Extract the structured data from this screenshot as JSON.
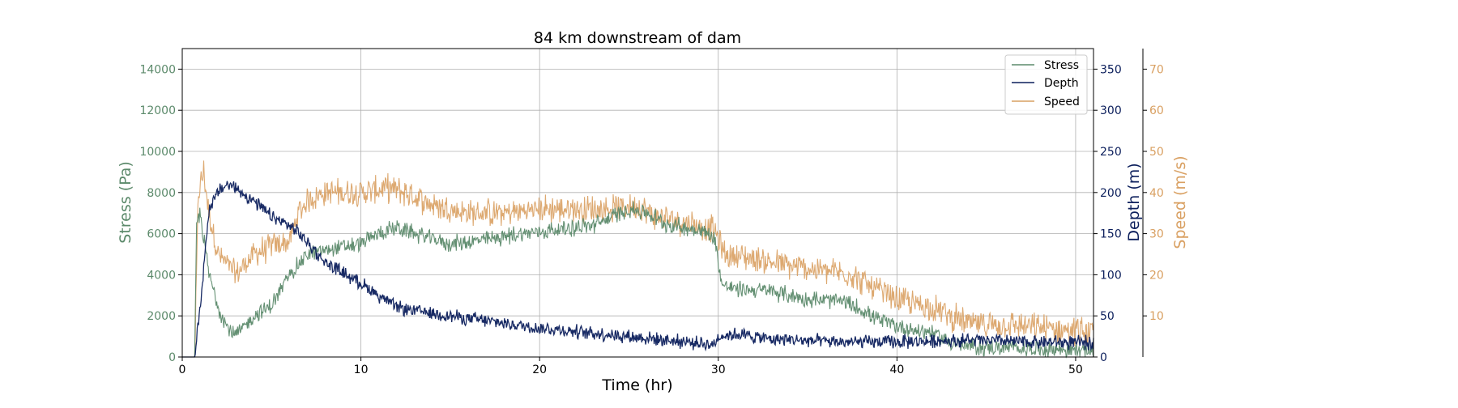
{
  "chart_data": {
    "type": "line",
    "title": "84 km downstream of dam",
    "xlabel": "Time (hr)",
    "xlim": [
      0,
      51
    ],
    "x_ticks": [
      0,
      10,
      20,
      30,
      40,
      50
    ],
    "grid": true,
    "legend_position": "top-right",
    "axes": [
      {
        "id": "stress",
        "label": "Stress (Pa)",
        "side": "left",
        "ylim": [
          0,
          15000
        ],
        "ticks": [
          0,
          2000,
          4000,
          6000,
          8000,
          10000,
          12000,
          14000
        ],
        "color": "#5c8a6b"
      },
      {
        "id": "depth",
        "label": "Depth (m)",
        "side": "right",
        "ylim": [
          0,
          375
        ],
        "ticks": [
          0,
          50,
          100,
          150,
          200,
          250,
          300,
          350
        ],
        "color": "#0c1f5c"
      },
      {
        "id": "speed",
        "label": "Speed (m/s)",
        "side": "right-offset",
        "ylim": [
          0,
          75
        ],
        "ticks": [
          10,
          20,
          30,
          40,
          50,
          60,
          70
        ],
        "color": "#d9a062"
      }
    ],
    "series": [
      {
        "name": "Stress",
        "axis": "stress",
        "color": "#5c8a6b",
        "noise": 500,
        "x": [
          0,
          0.7,
          0.8,
          1.0,
          1.5,
          2.0,
          2.5,
          3.0,
          4.0,
          5.0,
          6.0,
          7.0,
          8.0,
          10.0,
          11.0,
          12.0,
          13.0,
          15.0,
          17.0,
          19.0,
          21.0,
          23.0,
          24.0,
          25.0,
          26.0,
          27.0,
          28.0,
          29.0,
          29.8,
          30.2,
          31.0,
          33.0,
          35.0,
          37.0,
          38.0,
          39.0,
          40.0,
          41.0,
          42.0,
          43.0,
          44.0,
          46.0,
          48.0,
          50.0,
          51.0
        ],
        "y": [
          0,
          0,
          6500,
          7000,
          4000,
          2500,
          1500,
          1000,
          2000,
          2500,
          4000,
          5000,
          5200,
          5500,
          6000,
          6300,
          6000,
          5500,
          5700,
          6000,
          6200,
          6400,
          6800,
          7200,
          7000,
          6500,
          6300,
          6200,
          5800,
          3500,
          3300,
          3200,
          2800,
          2700,
          2300,
          1800,
          1500,
          1300,
          1200,
          700,
          500,
          450,
          400,
          350,
          300
        ]
      },
      {
        "name": "Depth",
        "axis": "depth",
        "color": "#0c1f5c",
        "noise": 10,
        "x": [
          0,
          0.7,
          1.0,
          1.5,
          2.0,
          2.5,
          3.0,
          4.0,
          5.0,
          6.0,
          7.0,
          8.0,
          10.0,
          12.0,
          15.0,
          20.0,
          25.0,
          29.8,
          30.0,
          31.0,
          33.0,
          35.0,
          37.0,
          40.0,
          43.0,
          45.0,
          48.0,
          51.0
        ],
        "y": [
          0,
          0,
          60,
          180,
          200,
          210,
          205,
          190,
          170,
          160,
          140,
          115,
          90,
          60,
          50,
          35,
          25,
          15,
          25,
          28,
          22,
          20,
          18,
          18,
          20,
          20,
          18,
          17
        ]
      },
      {
        "name": "Speed",
        "axis": "speed",
        "color": "#d9a062",
        "noise": 4,
        "x": [
          0,
          0.7,
          0.9,
          1.2,
          1.5,
          2.0,
          3.0,
          4.0,
          5.0,
          6.0,
          6.5,
          7.0,
          8.0,
          10.0,
          11.5,
          12.5,
          14.0,
          16.0,
          18.0,
          20.0,
          22.0,
          24.0,
          25.5,
          26.5,
          28.0,
          29.8,
          30.3,
          32.0,
          34.0,
          36.0,
          37.5,
          38.5,
          40.0,
          42.0,
          43.0,
          44.0,
          46.0,
          48.0,
          50.0,
          51.0
        ],
        "y": [
          0,
          0,
          40,
          45,
          35,
          25,
          20,
          25,
          27,
          28,
          35,
          38,
          40,
          40,
          41,
          40,
          37,
          35,
          35,
          36,
          36,
          36,
          37,
          34,
          33,
          31,
          25,
          24,
          22,
          21,
          20,
          17,
          14,
          12,
          10,
          8,
          8,
          7,
          6.5,
          6
        ]
      }
    ]
  }
}
